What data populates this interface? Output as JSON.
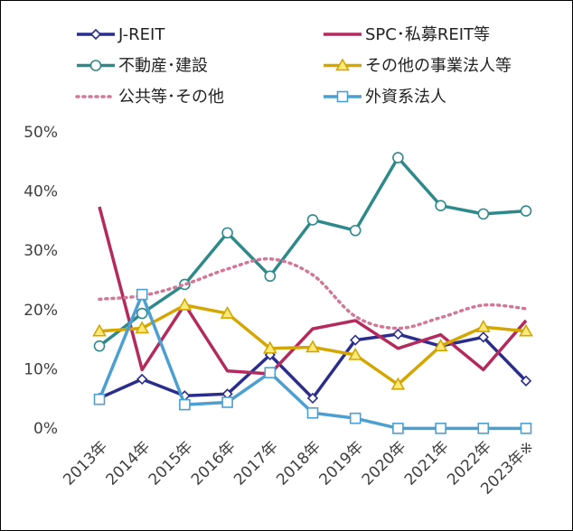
{
  "chart_data": {
    "type": "line",
    "categories": [
      "2013年",
      "2014年",
      "2015年",
      "2016年",
      "2017年",
      "2018年",
      "2019年",
      "2020年",
      "2021年",
      "2022年",
      "2023年※"
    ],
    "ylim": [
      0,
      50
    ],
    "yticks": [
      {
        "value": 0,
        "label": "0%"
      },
      {
        "value": 10,
        "label": "10%"
      },
      {
        "value": 20,
        "label": "20%"
      },
      {
        "value": 30,
        "label": "30%"
      },
      {
        "value": 40,
        "label": "40%"
      },
      {
        "value": 50,
        "label": "50%"
      }
    ],
    "grid": false,
    "series": [
      {
        "name": "J-REIT",
        "color": "#2a2d8c",
        "marker": "diamond",
        "values": [
          5.2,
          8.4,
          5.6,
          5.9,
          12.5,
          5.2,
          15.0,
          16.0,
          14.0,
          15.5,
          8.1
        ]
      },
      {
        "name": "SPC･私募REIT等",
        "color": "#b52a5c",
        "marker": "none",
        "values": [
          37.5,
          10.0,
          21.0,
          9.8,
          9.3,
          16.9,
          18.3,
          13.6,
          15.9,
          10.0,
          18.3
        ]
      },
      {
        "name": "不動産･建設",
        "color": "#2e8a8a",
        "marker": "circle",
        "values": [
          14.0,
          19.5,
          24.4,
          33.1,
          25.8,
          35.3,
          33.5,
          45.8,
          37.7,
          36.3,
          36.8
        ]
      },
      {
        "name": "その他の事業法人等",
        "color": "#d4a600",
        "marker": "triangle",
        "values": [
          16.5,
          17.0,
          20.9,
          19.5,
          13.6,
          13.8,
          12.5,
          7.5,
          14.0,
          17.2,
          16.5
        ]
      },
      {
        "name": "公共等･その他",
        "color": "#d27896",
        "marker": "none",
        "dotted": true,
        "smooth": true,
        "values": [
          21.9,
          22.5,
          24.4,
          27.0,
          28.7,
          26.0,
          19.0,
          17.0,
          18.8,
          20.9,
          20.3
        ]
      },
      {
        "name": "外資系法人",
        "color": "#4b9fd1",
        "marker": "square",
        "values": [
          5.0,
          22.7,
          4.1,
          4.5,
          9.5,
          2.7,
          1.8,
          0.1,
          0.1,
          0.1,
          0.1
        ]
      }
    ]
  }
}
